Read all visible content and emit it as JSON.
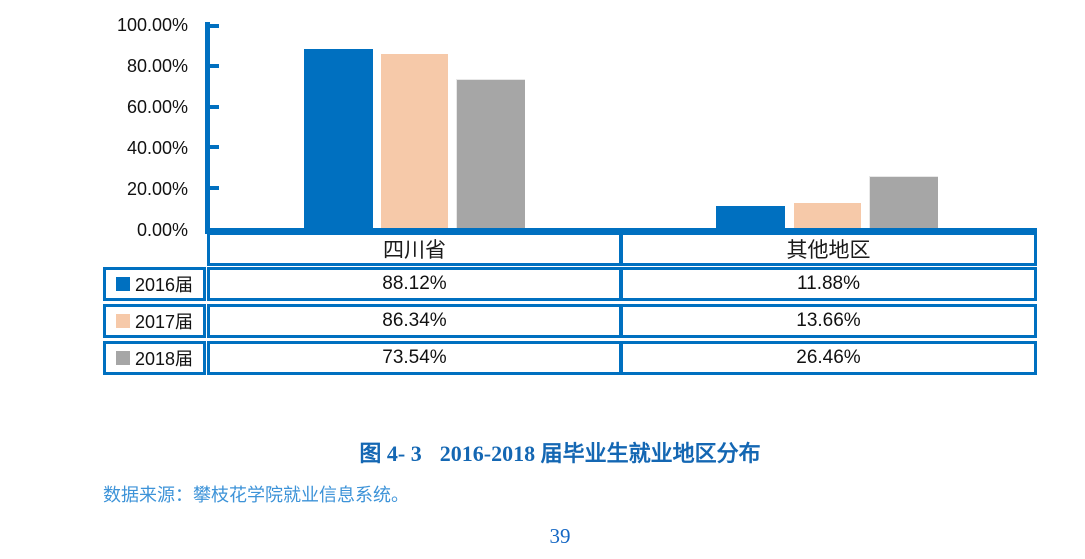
{
  "chart_data": {
    "type": "bar",
    "title": "图 4- 3  2016-2018 届毕业生就业地区分布",
    "categories": [
      "四川省",
      "其他地区"
    ],
    "series": [
      {
        "name": "2016届",
        "color": "#0070C0",
        "values": [
          88.12,
          11.88
        ],
        "values_display": [
          "88.12%",
          "11.88%"
        ]
      },
      {
        "name": "2017届",
        "color": "#F6C9A9",
        "values": [
          86.34,
          13.66
        ],
        "values_display": [
          "86.34%",
          "13.66%"
        ]
      },
      {
        "name": "2018届",
        "color": "#A6A6A6",
        "values": [
          73.54,
          26.46
        ],
        "values_display": [
          "73.54%",
          "26.46%"
        ]
      }
    ],
    "ylim": [
      0,
      100
    ],
    "y_ticks": [
      "100.00%",
      "80.00%",
      "60.00%",
      "40.00%",
      "20.00%",
      "0.00%"
    ],
    "grid": false,
    "legend_position": "table-left",
    "axis_color": "#0070C0"
  },
  "caption": {
    "figure_label": "图 4- 3",
    "figure_title": "2016-2018 届毕业生就业地区分布"
  },
  "source_note": "数据来源：攀枝花学院就业信息系统。",
  "page_number": "39"
}
